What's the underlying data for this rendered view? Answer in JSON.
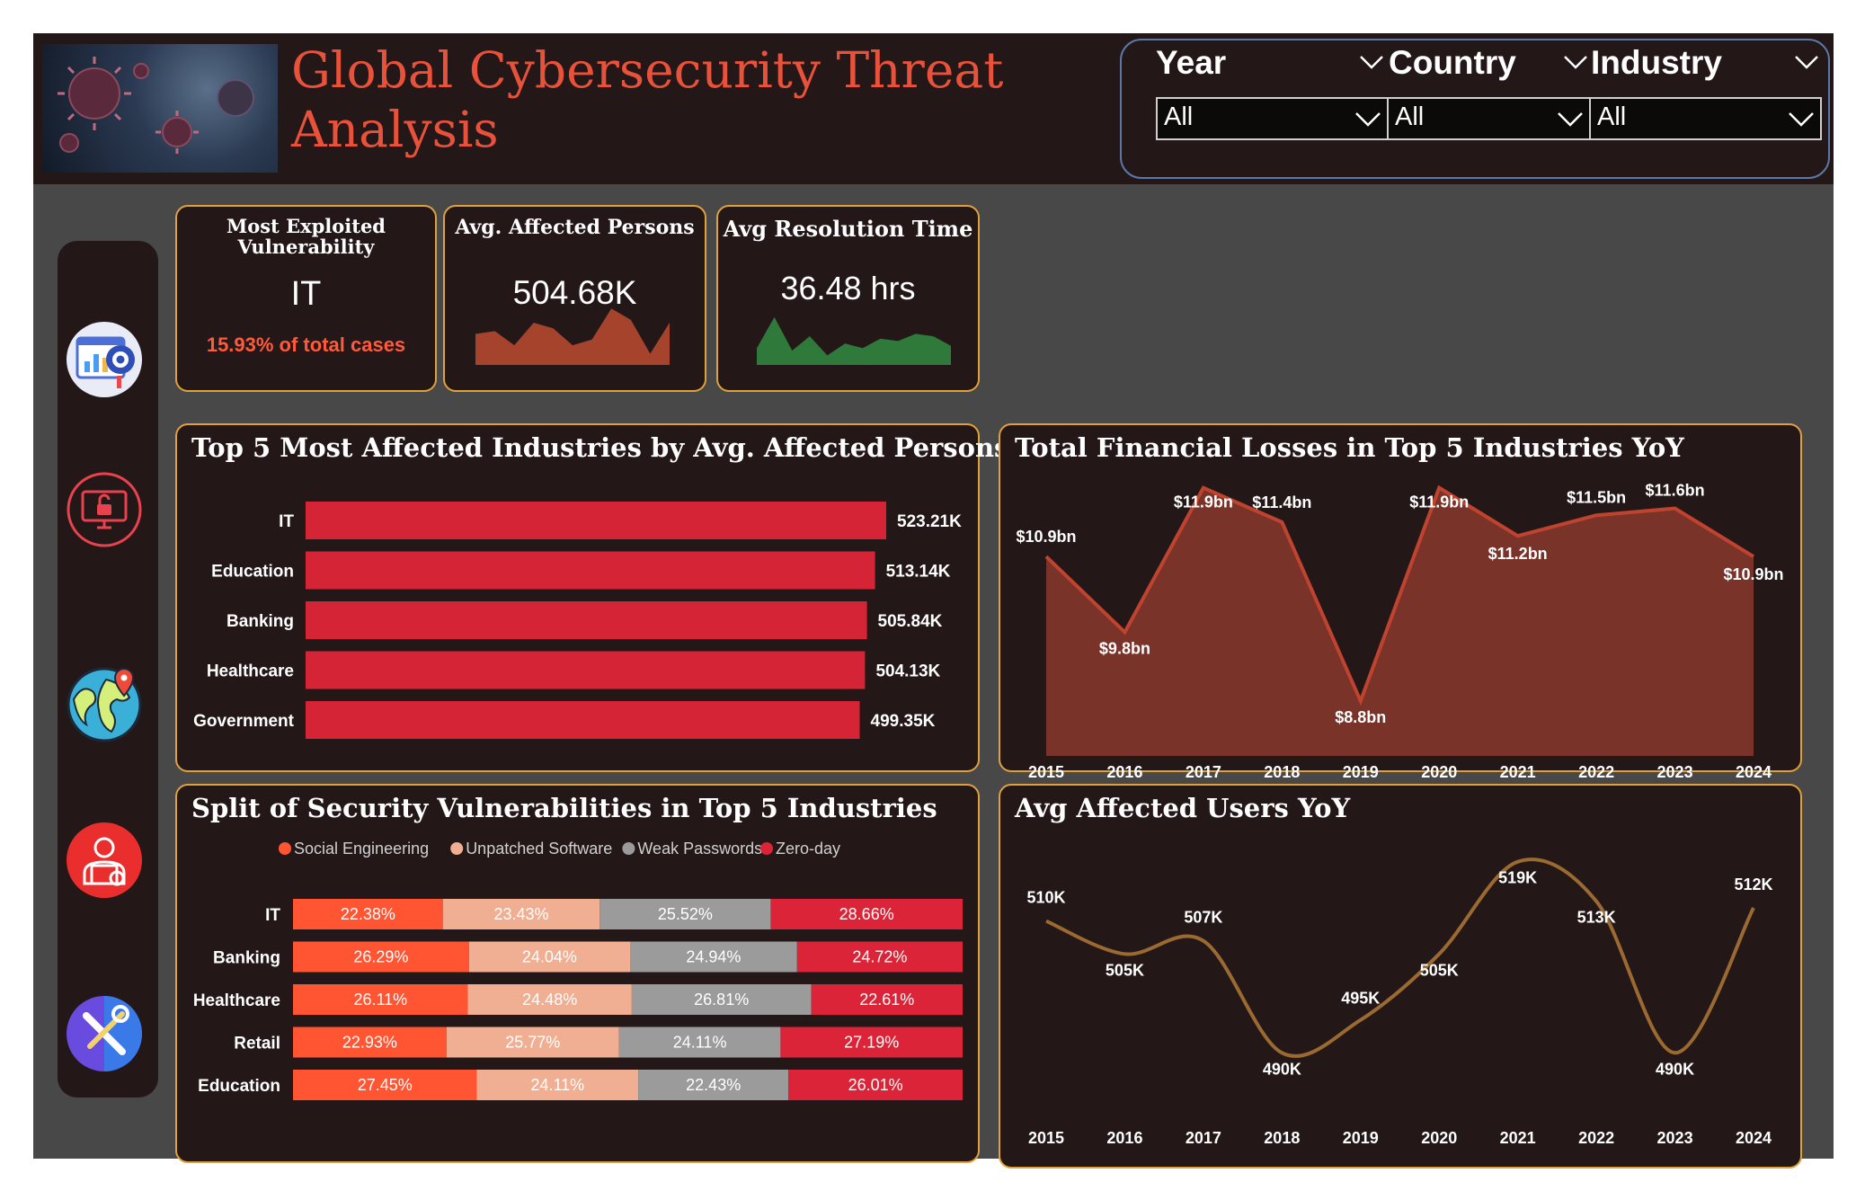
{
  "header": {
    "title": "Global Cybersecurity Threat Analysis"
  },
  "filters": [
    {
      "label": "Year",
      "value": "All"
    },
    {
      "label": "Country",
      "value": "All"
    },
    {
      "label": "Industry",
      "value": "All"
    }
  ],
  "sidebar": {
    "icons": [
      "dashboard-analytics-icon",
      "security-lock-icon",
      "globe-location-icon",
      "hacker-icon",
      "tools-icon"
    ]
  },
  "kpis": {
    "exploited": {
      "title": "Most Exploited Vulnerability",
      "value": "IT",
      "sub": "15.93% of total cases"
    },
    "affected": {
      "title": "Avg. Affected Persons",
      "value": "504.68K",
      "sparkline": [
        0.55,
        0.6,
        0.35,
        0.75,
        0.65,
        0.35,
        0.45,
        1.0,
        0.8,
        0.2,
        0.75
      ]
    },
    "resolution": {
      "title": "Avg Resolution Time",
      "value": "36.48 hrs",
      "sparkline": [
        0.35,
        1.0,
        0.3,
        0.6,
        0.2,
        0.45,
        0.35,
        0.55,
        0.5,
        0.65,
        0.6,
        0.4
      ]
    }
  },
  "colors": {
    "accent": "#e8513a",
    "card_border": "#e0a13a",
    "bar": "#d62437",
    "area_fill": "#7a3328",
    "area_line": "#c0432f",
    "line": "#9a6a30",
    "spark_red": "#a6432d",
    "spark_green": "#2f7a3a"
  },
  "chart_data": [
    {
      "type": "bar",
      "title": "Top 5 Most Affected Industries by Avg. Affected Persons",
      "categories": [
        "IT",
        "Education",
        "Banking",
        "Healthcare",
        "Government"
      ],
      "values": [
        523.21,
        513.14,
        505.84,
        504.13,
        499.35
      ],
      "labels": [
        "523.21K",
        "513.14K",
        "505.84K",
        "504.13K",
        "499.35K"
      ],
      "unit": "K",
      "xlim": [
        0,
        523.21
      ]
    },
    {
      "type": "area",
      "title": "Total Financial Losses in Top 5 Industries YoY",
      "x": [
        "2015",
        "2016",
        "2017",
        "2018",
        "2019",
        "2020",
        "2021",
        "2022",
        "2023",
        "2024"
      ],
      "values": [
        10.9,
        9.8,
        11.9,
        11.4,
        8.8,
        11.9,
        11.2,
        11.5,
        11.6,
        10.9
      ],
      "labels": [
        "$10.9bn",
        "$9.8bn",
        "$11.9bn",
        "$11.4bn",
        "$8.8bn",
        "$11.9bn",
        "$11.2bn",
        "$11.5bn",
        "$11.6bn",
        "$10.9bn"
      ],
      "ylim": [
        8.0,
        12.0
      ]
    },
    {
      "type": "bar",
      "stacked": "100%",
      "title": "Split of Security Vulnerabilities in Top 5 Industries",
      "categories": [
        "IT",
        "Banking",
        "Healthcare",
        "Retail",
        "Education"
      ],
      "series": [
        {
          "name": "Social Engineering",
          "color": "#ff5533",
          "values": [
            22.38,
            26.29,
            26.11,
            22.93,
            27.45
          ],
          "labels": [
            "22.38%",
            "26.29%",
            "26.11%",
            "22.93%",
            "27.45%"
          ]
        },
        {
          "name": "Unpatched Software",
          "color": "#f0ae92",
          "values": [
            23.43,
            24.04,
            24.48,
            25.77,
            24.11
          ],
          "labels": [
            "23.43%",
            "24.04%",
            "24.48%",
            "25.77%",
            "24.11%"
          ]
        },
        {
          "name": "Weak Passwords",
          "color": "#9b9b9b",
          "values": [
            25.52,
            24.94,
            26.81,
            24.11,
            22.43
          ],
          "labels": [
            "25.52%",
            "24.94%",
            "26.81%",
            "24.11%",
            "22.43%"
          ]
        },
        {
          "name": "Zero-day",
          "color": "#db2437",
          "values": [
            28.66,
            24.72,
            22.61,
            27.19,
            26.01
          ],
          "labels": [
            "28.66%",
            "24.72%",
            "22.61%",
            "27.19%",
            "26.01%"
          ]
        }
      ],
      "legend": "top"
    },
    {
      "type": "line",
      "title": "Avg Affected Users YoY",
      "x": [
        "2015",
        "2016",
        "2017",
        "2018",
        "2019",
        "2020",
        "2021",
        "2022",
        "2023",
        "2024"
      ],
      "values": [
        510,
        505,
        507,
        490,
        495,
        505,
        519,
        513,
        490,
        512
      ],
      "labels": [
        "510K",
        "505K",
        "507K",
        "490K",
        "495K",
        "505K",
        "519K",
        "513K",
        "490K",
        "512K"
      ],
      "ylim": [
        488,
        521
      ]
    }
  ]
}
